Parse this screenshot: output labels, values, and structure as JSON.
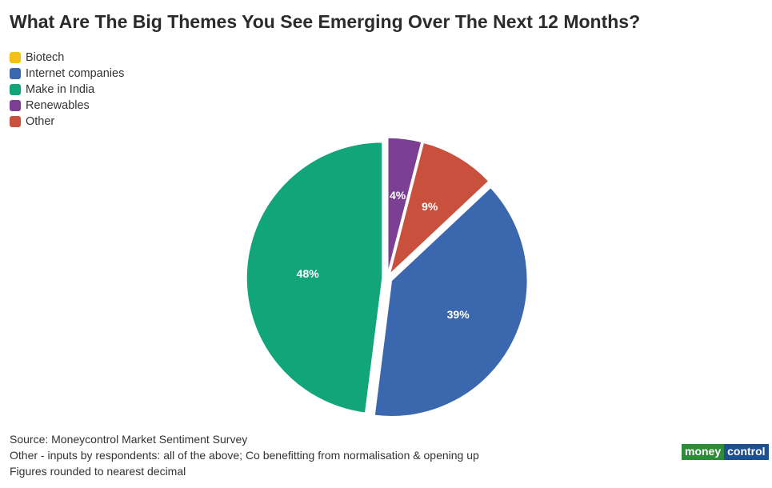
{
  "chart_data": {
    "type": "pie",
    "title": "What Are The Big Themes You See Emerging Over The Next 12 Months?",
    "slices": [
      {
        "label": "Biotech",
        "value": 0,
        "color": "#f2c114",
        "display": ""
      },
      {
        "label": "Internet companies",
        "value": 39,
        "color": "#3a67ad",
        "display": "39%"
      },
      {
        "label": "Make in India",
        "value": 48,
        "color": "#13a57a",
        "display": "48%"
      },
      {
        "label": "Renewables",
        "value": 4,
        "color": "#7b3f93",
        "display": "4%"
      },
      {
        "label": "Other",
        "value": 9,
        "color": "#c9503c",
        "display": "9%"
      }
    ],
    "legend_position": "top-left"
  },
  "footer": {
    "line1": "Source: Moneycontrol Market Sentiment Survey",
    "line2": "Other - inputs by respondents: all of the above; Co benefitting from normalisation & opening up",
    "line3": "Figures rounded to nearest decimal"
  },
  "logo": {
    "part1": "money",
    "part2": "control"
  }
}
